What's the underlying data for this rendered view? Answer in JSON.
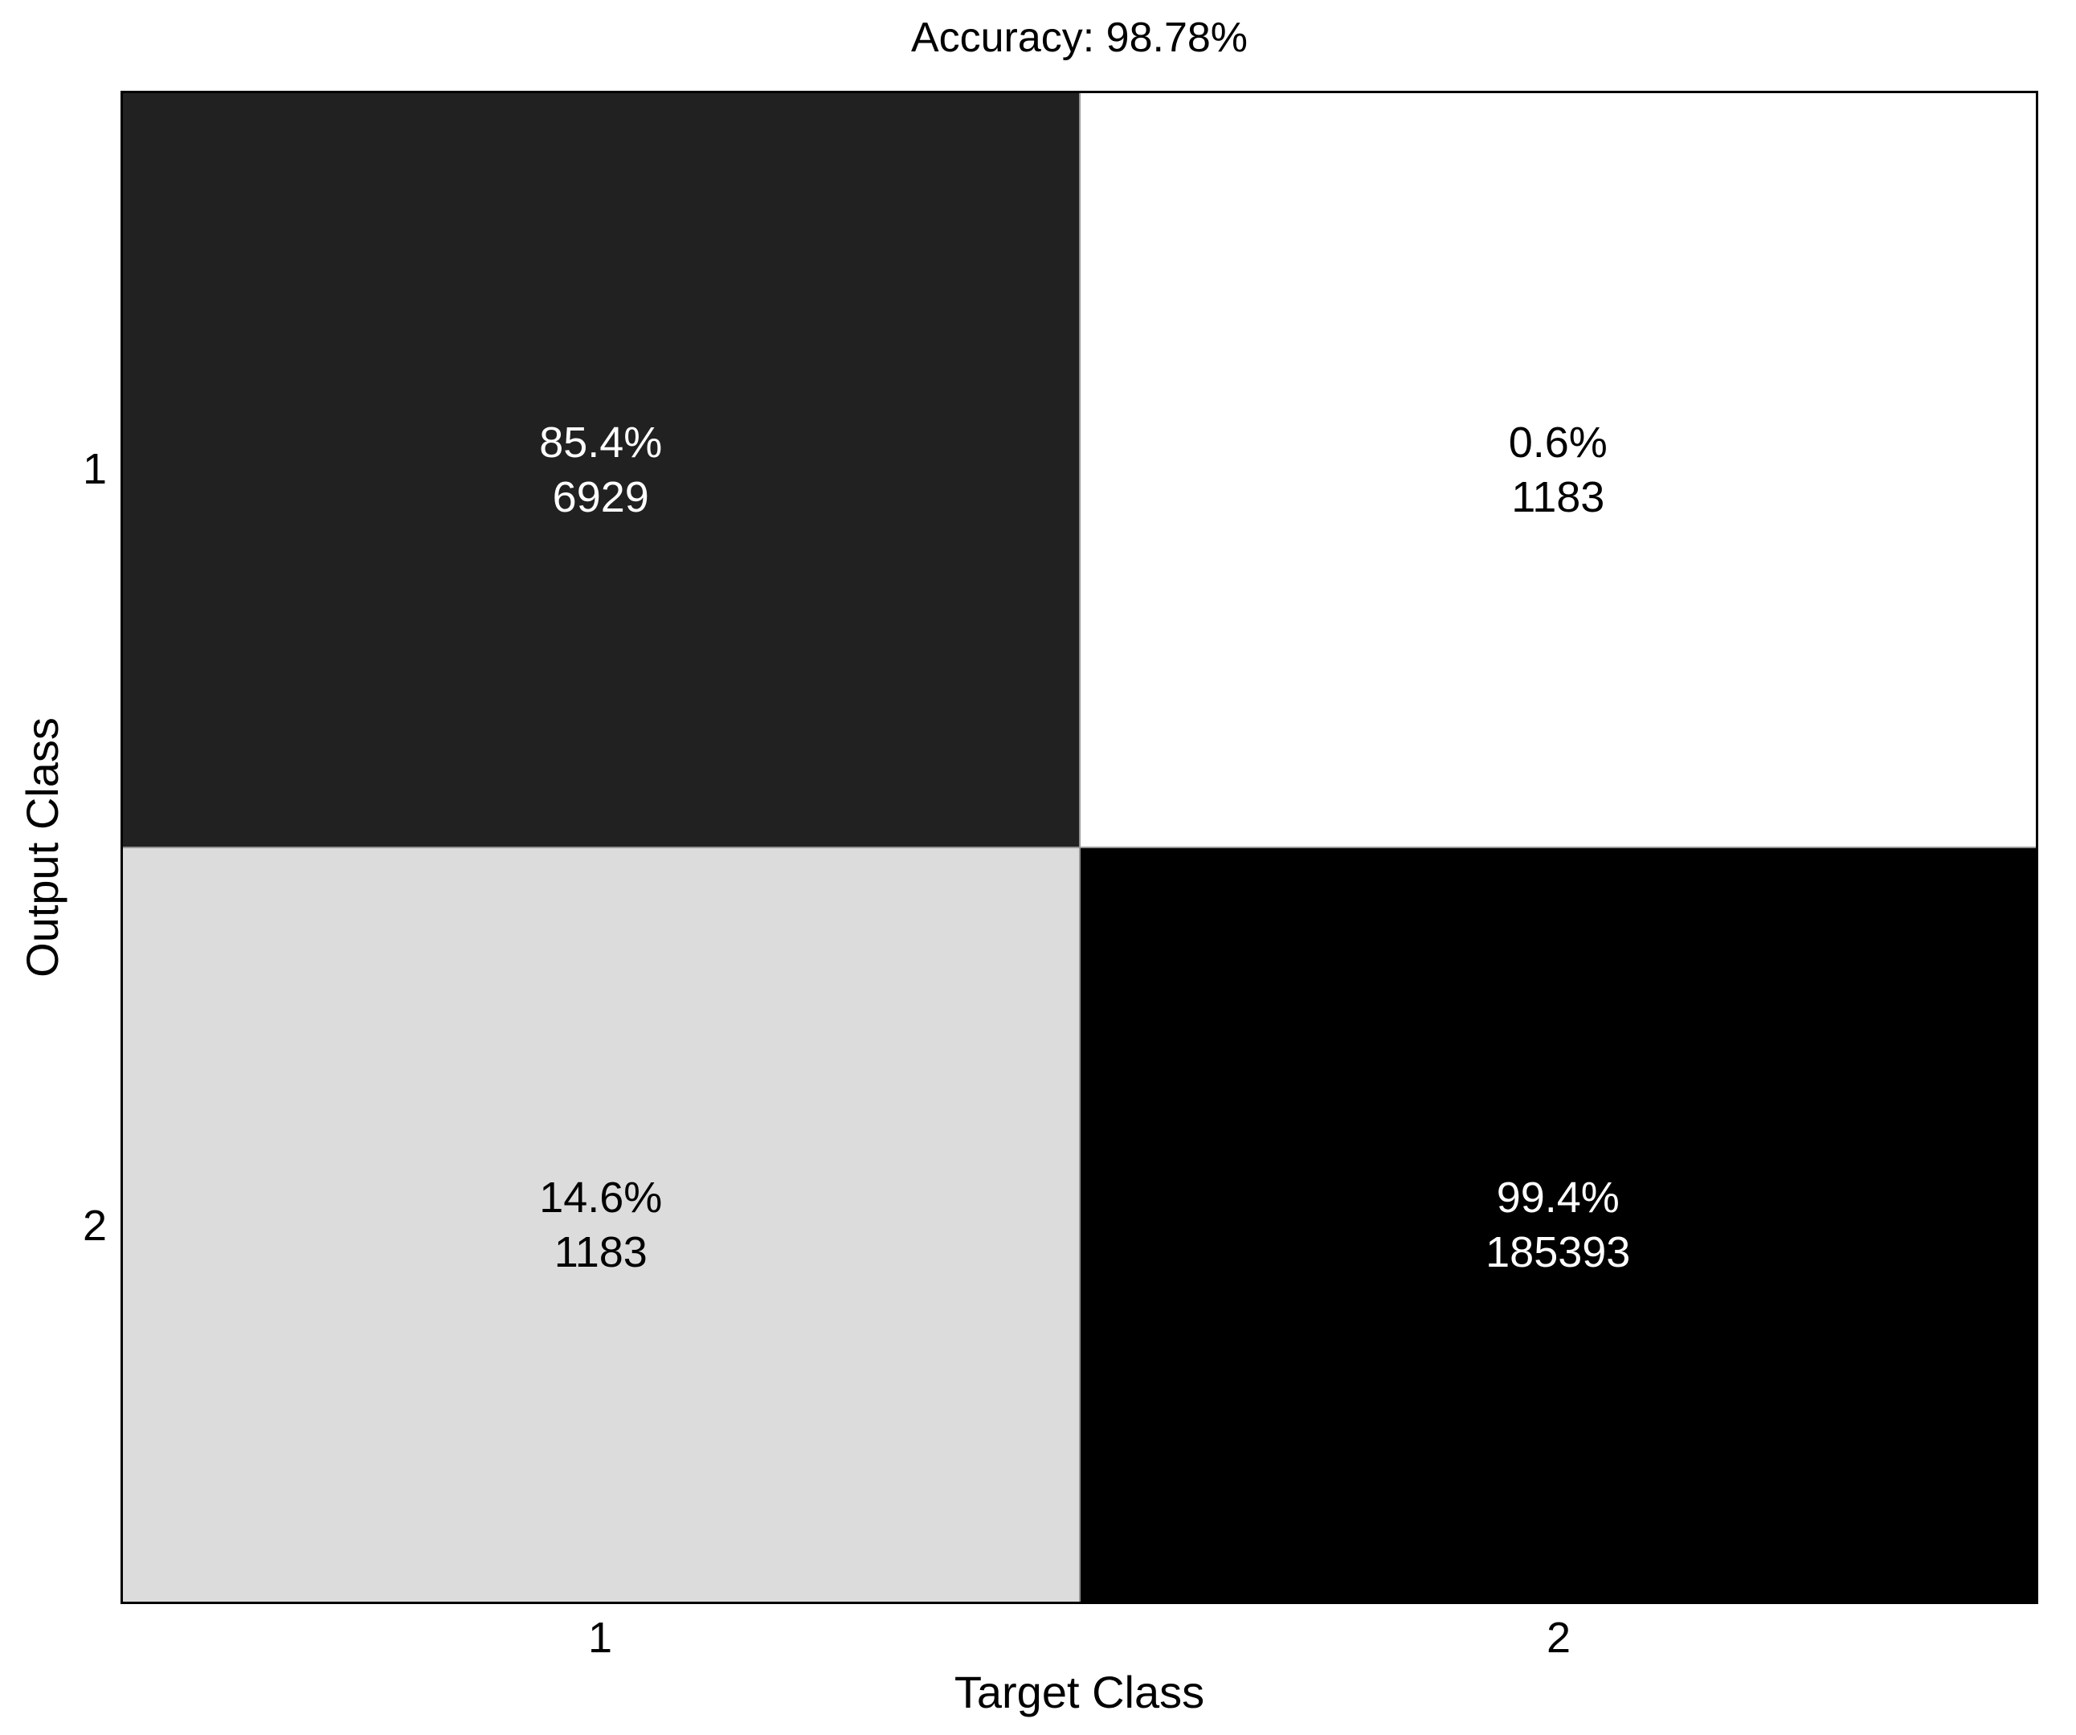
{
  "chart_data": {
    "type": "heatmap",
    "subtype": "confusion-matrix",
    "title": "Accuracy: 98.78%",
    "accuracy_percent": 98.78,
    "xlabel": "Target Class",
    "ylabel": "Output Class",
    "x_categories": [
      "1",
      "2"
    ],
    "y_categories": [
      "1",
      "2"
    ],
    "matrix_counts": [
      [
        6929,
        1183
      ],
      [
        1183,
        185393
      ]
    ],
    "matrix_percents": [
      [
        85.4,
        0.6
      ],
      [
        14.6,
        99.4
      ]
    ],
    "cells": [
      {
        "output_class": "1",
        "target_class": "1",
        "percent": "85.4%",
        "count": "6929",
        "bg": "#212121",
        "fg": "#ffffff"
      },
      {
        "output_class": "1",
        "target_class": "2",
        "percent": "0.6%",
        "count": "1183",
        "bg": "#ffffff",
        "fg": "#000000"
      },
      {
        "output_class": "2",
        "target_class": "1",
        "percent": "14.6%",
        "count": "1183",
        "bg": "#dcdcdc",
        "fg": "#000000"
      },
      {
        "output_class": "2",
        "target_class": "2",
        "percent": "99.4%",
        "count": "185393",
        "bg": "#000000",
        "fg": "#ffffff"
      }
    ],
    "colors": {
      "gridline": "#969696",
      "plot_border": "#000000",
      "background": "#ffffff",
      "text": "#000000"
    },
    "layout": {
      "grid": true,
      "legend": false,
      "colorbar": false
    }
  }
}
